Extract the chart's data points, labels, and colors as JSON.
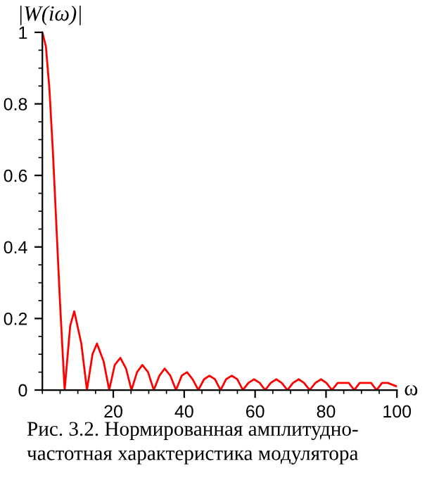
{
  "chart_data": {
    "type": "line",
    "ylabel": "|W(iω)|",
    "xlabel": "ω",
    "annotations": [
      "Рис. 3.2. Нормированная амплитудно-\nчастотная характеристика модулятора"
    ],
    "x": [
      0,
      1,
      2,
      3,
      4,
      5,
      6.28,
      7.85,
      9,
      10.99,
      12.57,
      14.14,
      15.4,
      17.28,
      18.85,
      20.4,
      22,
      23.6,
      25.13,
      26.7,
      28.2,
      29.8,
      31.42,
      33,
      34.5,
      36.1,
      37.7,
      39.3,
      40.8,
      42.4,
      43.98,
      45.6,
      47.1,
      48.7,
      50.27,
      51.8,
      53.4,
      55,
      56.55,
      58.1,
      59.7,
      61.3,
      62.83,
      64.4,
      66,
      67.5,
      69.12,
      70.7,
      72.3,
      73.8,
      75.4,
      77,
      78.6,
      80.1,
      81.68,
      83.3,
      84.9,
      86.4,
      87.96,
      89.5,
      91.1,
      92.7,
      94.25,
      95.8,
      97.4,
      100
    ],
    "series": [
      {
        "color": "#ff0000",
        "values": [
          1,
          0.96,
          0.84,
          0.66,
          0.45,
          0.24,
          0,
          0.18,
          0.22,
          0.13,
          0,
          0.1,
          0.13,
          0.08,
          0,
          0.07,
          0.09,
          0.06,
          0,
          0.05,
          0.07,
          0.05,
          0,
          0.04,
          0.06,
          0.04,
          0,
          0.04,
          0.05,
          0.03,
          0,
          0.03,
          0.04,
          0.03,
          0,
          0.03,
          0.04,
          0.03,
          0,
          0.02,
          0.03,
          0.02,
          0,
          0.02,
          0.03,
          0.02,
          0,
          0.02,
          0.03,
          0.02,
          0,
          0.02,
          0.03,
          0.02,
          0,
          0.02,
          0.02,
          0.02,
          0,
          0.02,
          0.02,
          0.02,
          0,
          0.02,
          0.02,
          0.01
        ]
      }
    ],
    "xlim": [
      0,
      100
    ],
    "ylim": [
      0,
      1
    ],
    "xticks": [
      20,
      40,
      60,
      80,
      100
    ],
    "yticks": [
      0,
      0.2,
      0.4,
      0.6,
      0.8,
      1
    ],
    "grid": false,
    "line_style": "solid",
    "marker": "none"
  }
}
